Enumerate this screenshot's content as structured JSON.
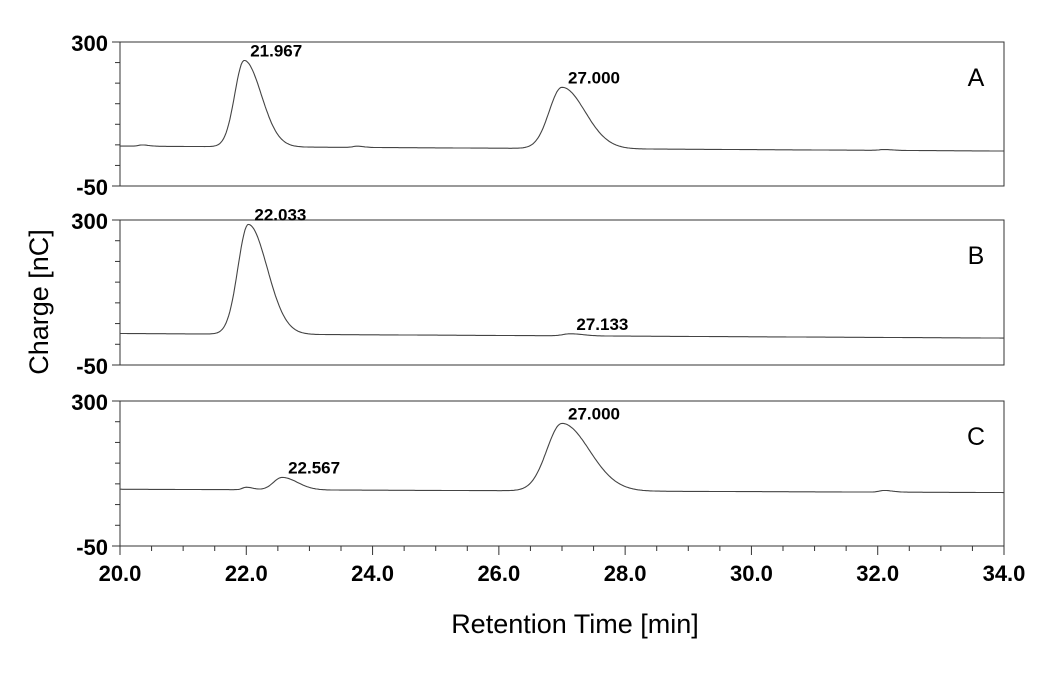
{
  "chart_data": {
    "type": "line",
    "xlabel": "Retention Time [min]",
    "ylabel": "Charge [nC]",
    "xlim": [
      20.0,
      34.0
    ],
    "xticks": [
      20.0,
      22.0,
      24.0,
      26.0,
      28.0,
      30.0,
      32.0,
      34.0
    ],
    "xtick_labels": [
      "20.0",
      "22.0",
      "24.0",
      "26.0",
      "28.0",
      "30.0",
      "32.0",
      "34.0"
    ],
    "grid": false,
    "panels": [
      {
        "tag": "A",
        "ylim": [
          -50,
          300
        ],
        "ytick_labels": [
          "300",
          "-50"
        ],
        "baseline_start": 47,
        "baseline_end": 35,
        "peaks": [
          {
            "x": 21.967,
            "label": "21.967",
            "height": 210,
            "width": 0.2
          },
          {
            "x": 27.0,
            "label": "27.000",
            "height": 149,
            "width": 0.27
          },
          {
            "x": 20.35,
            "label": "",
            "height": 3,
            "width": 0.08
          },
          {
            "x": 23.75,
            "label": "",
            "height": 3,
            "width": 0.08
          },
          {
            "x": 32.1,
            "label": "",
            "height": 2,
            "width": 0.1
          }
        ]
      },
      {
        "tag": "B",
        "ylim": [
          -50,
          300
        ],
        "ytick_labels": [
          "300",
          "-50"
        ],
        "baseline_start": 26,
        "baseline_end": 15,
        "peaks": [
          {
            "x": 22.033,
            "label": "22.033",
            "height": 265,
            "width": 0.22
          },
          {
            "x": 27.133,
            "label": "27.133",
            "height": 5,
            "width": 0.15
          }
        ]
      },
      {
        "tag": "C",
        "ylim": [
          -50,
          300
        ],
        "ytick_labels": [
          "300",
          "-50"
        ],
        "baseline_start": 87,
        "baseline_end": 79,
        "peaks": [
          {
            "x": 22.567,
            "label": "22.567",
            "height": 30,
            "width": 0.18
          },
          {
            "x": 27.0,
            "label": "27.000",
            "height": 163,
            "width": 0.32
          },
          {
            "x": 22.0,
            "label": "",
            "height": 6,
            "width": 0.08
          },
          {
            "x": 32.1,
            "label": "",
            "height": 4,
            "width": 0.1
          }
        ]
      }
    ]
  }
}
